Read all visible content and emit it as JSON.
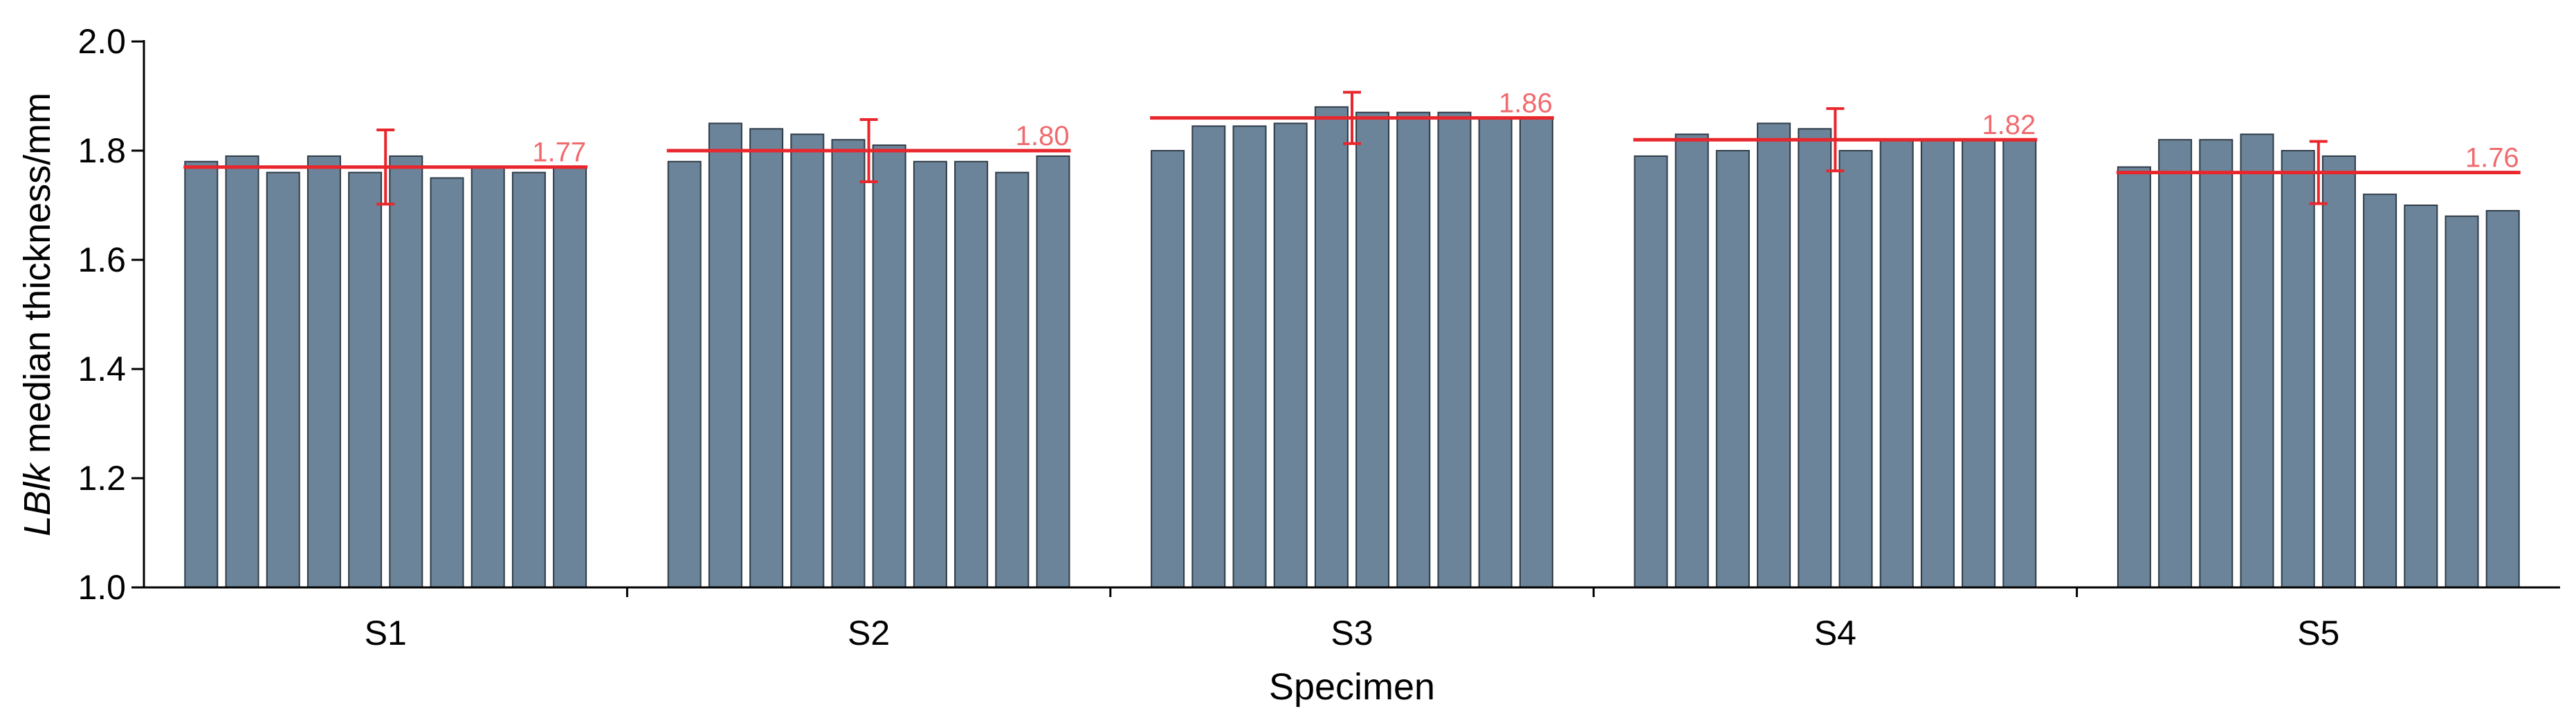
{
  "chart_data": {
    "type": "bar",
    "xlabel": "Specimen",
    "ylabel_italic": "LBlk",
    "ylabel_rest": " median thickness/mm",
    "ylim": [
      1.0,
      2.0
    ],
    "yticks": [
      "1.0",
      "1.2",
      "1.4",
      "1.6",
      "1.8",
      "2.0"
    ],
    "categories": [
      "S1",
      "S2",
      "S3",
      "S4",
      "S5"
    ],
    "groups": [
      {
        "label": "S1",
        "values": [
          1.78,
          1.79,
          1.76,
          1.79,
          1.76,
          1.79,
          1.75,
          1.77,
          1.76,
          1.77
        ],
        "mean": 1.77,
        "mean_label": "1.77",
        "err": 0.068
      },
      {
        "label": "S2",
        "values": [
          1.78,
          1.85,
          1.84,
          1.83,
          1.82,
          1.81,
          1.78,
          1.78,
          1.76,
          1.79
        ],
        "mean": 1.8,
        "mean_label": "1.80",
        "err": 0.057
      },
      {
        "label": "S3",
        "values": [
          1.8,
          1.845,
          1.845,
          1.85,
          1.88,
          1.87,
          1.87,
          1.87,
          1.86,
          1.86
        ],
        "mean": 1.86,
        "mean_label": "1.86",
        "err": 0.047
      },
      {
        "label": "S4",
        "values": [
          1.79,
          1.83,
          1.8,
          1.85,
          1.84,
          1.8,
          1.82,
          1.82,
          1.82,
          1.82
        ],
        "mean": 1.82,
        "mean_label": "1.82",
        "err": 0.057
      },
      {
        "label": "S5",
        "values": [
          1.77,
          1.82,
          1.82,
          1.83,
          1.8,
          1.79,
          1.72,
          1.7,
          1.68,
          1.69
        ],
        "mean": 1.76,
        "mean_label": "1.76",
        "err": 0.057
      }
    ],
    "legend": "none",
    "grid": false,
    "colors": {
      "bar": "#6b8499",
      "bar_edge": "#2f3b47",
      "mean_line": "#e8262c",
      "mean_label": "#f06a6e",
      "axis": "#000000"
    }
  }
}
